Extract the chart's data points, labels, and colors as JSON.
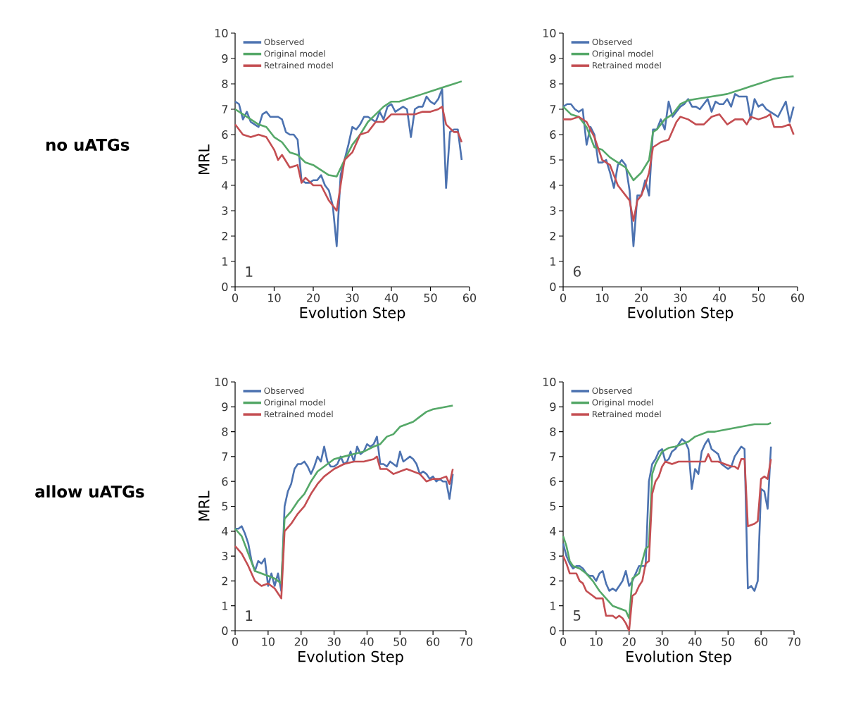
{
  "chart_data": [
    {
      "type": "line",
      "xlabel": "Evolution Step",
      "ylabel": "MRL",
      "annotations": [
        "1",
        "no uATGs"
      ],
      "xlim": [
        0,
        60
      ],
      "xticks": [
        0,
        10,
        20,
        30,
        40,
        50,
        60
      ],
      "ylim": [
        0,
        10
      ],
      "yticks": [
        0,
        1,
        2,
        3,
        4,
        5,
        6,
        7,
        8,
        9,
        10
      ],
      "legend": "top left",
      "grid": false,
      "line_style": "solid",
      "series": [
        {
          "name": "Observed",
          "color": "#4c72b0",
          "x": [
            0,
            1,
            2,
            3,
            4,
            5,
            6,
            7,
            8,
            9,
            10,
            11,
            12,
            13,
            14,
            15,
            16,
            17,
            18,
            19,
            20,
            21,
            22,
            23,
            24,
            25,
            26,
            27,
            28,
            29,
            30,
            31,
            32,
            33,
            34,
            35,
            36,
            37,
            38,
            39,
            40,
            41,
            42,
            43,
            44,
            45,
            46,
            47,
            48,
            49,
            50,
            51,
            52,
            53,
            54,
            55,
            56,
            57,
            58
          ],
          "values": [
            7.3,
            7.2,
            6.6,
            6.9,
            6.5,
            6.4,
            6.3,
            6.8,
            6.9,
            6.7,
            6.7,
            6.7,
            6.6,
            6.1,
            6.0,
            6.0,
            5.8,
            4.2,
            4.1,
            4.1,
            4.2,
            4.2,
            4.4,
            4.0,
            3.8,
            3.2,
            1.6,
            4.4,
            5.0,
            5.6,
            6.3,
            6.2,
            6.4,
            6.7,
            6.7,
            6.6,
            6.5,
            6.9,
            6.6,
            7.1,
            7.2,
            6.9,
            7.0,
            7.1,
            7.0,
            5.9,
            7.0,
            7.1,
            7.1,
            7.5,
            7.3,
            7.2,
            7.4,
            7.8,
            3.9,
            6.1,
            6.2,
            6.2,
            5.0
          ]
        },
        {
          "name": "Original model",
          "color": "#55a868",
          "x": [
            0,
            2,
            4,
            6,
            8,
            10,
            12,
            14,
            16,
            18,
            20,
            22,
            24,
            26,
            28,
            30,
            32,
            34,
            36,
            38,
            40,
            42,
            44,
            46,
            48,
            50,
            52,
            54,
            56,
            58
          ],
          "values": [
            7.0,
            6.8,
            6.6,
            6.4,
            6.3,
            5.9,
            5.7,
            5.3,
            5.2,
            4.9,
            4.8,
            4.6,
            4.4,
            4.35,
            5.0,
            5.6,
            6.0,
            6.5,
            6.8,
            7.1,
            7.3,
            7.3,
            7.4,
            7.5,
            7.6,
            7.7,
            7.8,
            7.9,
            8.0,
            8.1
          ]
        },
        {
          "name": "Retrained model",
          "color": "#c44e52",
          "x": [
            0,
            2,
            4,
            6,
            8,
            10,
            11,
            12,
            14,
            16,
            17,
            18,
            20,
            22,
            24,
            26,
            27,
            28,
            30,
            32,
            34,
            36,
            38,
            40,
            42,
            44,
            46,
            48,
            50,
            52,
            53,
            54,
            56,
            57,
            58
          ],
          "values": [
            6.4,
            6.0,
            5.9,
            6.0,
            5.9,
            5.4,
            5.0,
            5.2,
            4.7,
            4.8,
            4.1,
            4.3,
            4.0,
            4.0,
            3.4,
            3.0,
            4.0,
            5.0,
            5.3,
            6.0,
            6.1,
            6.5,
            6.5,
            6.8,
            6.8,
            6.8,
            6.8,
            6.9,
            6.9,
            7.0,
            7.1,
            6.4,
            6.1,
            6.1,
            5.7
          ]
        }
      ]
    },
    {
      "type": "line",
      "xlabel": "Evolution Step",
      "annotations": [
        "6"
      ],
      "xlim": [
        0,
        60
      ],
      "xticks": [
        0,
        10,
        20,
        30,
        40,
        50,
        60
      ],
      "ylim": [
        0,
        10
      ],
      "yticks": [
        0,
        1,
        2,
        3,
        4,
        5,
        6,
        7,
        8,
        9,
        10
      ],
      "legend": "top left",
      "grid": false,
      "line_style": "solid",
      "series": [
        {
          "name": "Observed",
          "color": "#4c72b0",
          "x": [
            0,
            1,
            2,
            3,
            4,
            5,
            6,
            7,
            8,
            9,
            10,
            11,
            12,
            13,
            14,
            15,
            16,
            17,
            18,
            19,
            20,
            21,
            22,
            23,
            24,
            25,
            26,
            27,
            28,
            29,
            30,
            31,
            32,
            33,
            34,
            35,
            36,
            37,
            38,
            39,
            40,
            41,
            42,
            43,
            44,
            45,
            46,
            47,
            48,
            49,
            50,
            51,
            52,
            53,
            54,
            55,
            56,
            57,
            58,
            59
          ],
          "values": [
            7.1,
            7.2,
            7.2,
            7.0,
            6.9,
            7.0,
            5.6,
            6.3,
            6.0,
            4.9,
            4.9,
            5.0,
            4.5,
            3.9,
            4.8,
            5.0,
            4.8,
            3.8,
            1.6,
            3.6,
            3.6,
            4.2,
            3.6,
            6.2,
            6.2,
            6.6,
            6.2,
            7.3,
            6.7,
            6.9,
            7.1,
            7.2,
            7.4,
            7.1,
            7.1,
            7.0,
            7.2,
            7.4,
            6.9,
            7.3,
            7.2,
            7.2,
            7.4,
            7.1,
            7.6,
            7.5,
            7.5,
            7.5,
            6.6,
            7.4,
            7.1,
            7.2,
            7.0,
            6.9,
            6.8,
            6.7,
            7.0,
            7.3,
            6.5,
            7.1
          ]
        },
        {
          "name": "Original model",
          "color": "#55a868",
          "x": [
            0,
            2,
            4,
            6,
            8,
            10,
            12,
            14,
            16,
            18,
            20,
            22,
            23,
            24,
            26,
            28,
            30,
            32,
            34,
            36,
            38,
            40,
            42,
            44,
            46,
            48,
            50,
            52,
            54,
            56,
            59
          ],
          "values": [
            7.1,
            6.8,
            6.7,
            6.3,
            5.5,
            5.4,
            5.1,
            4.9,
            4.7,
            4.2,
            4.5,
            5.0,
            6.1,
            6.2,
            6.6,
            6.8,
            7.2,
            7.35,
            7.4,
            7.45,
            7.5,
            7.55,
            7.6,
            7.7,
            7.8,
            7.9,
            8.0,
            8.1,
            8.2,
            8.25,
            8.3
          ]
        },
        {
          "name": "Retrained model",
          "color": "#c44e52",
          "x": [
            0,
            2,
            4,
            6,
            8,
            10,
            12,
            14,
            16,
            17,
            18,
            19,
            20,
            21,
            22,
            23,
            25,
            27,
            29,
            30,
            32,
            34,
            36,
            38,
            40,
            42,
            44,
            46,
            47,
            48,
            50,
            52,
            53,
            54,
            56,
            58,
            59
          ],
          "values": [
            6.6,
            6.6,
            6.7,
            6.5,
            5.9,
            5.0,
            4.8,
            4.0,
            3.6,
            3.4,
            2.6,
            3.4,
            3.6,
            4.0,
            4.5,
            5.5,
            5.7,
            5.8,
            6.5,
            6.7,
            6.6,
            6.4,
            6.4,
            6.7,
            6.8,
            6.4,
            6.6,
            6.6,
            6.4,
            6.7,
            6.6,
            6.7,
            6.8,
            6.3,
            6.3,
            6.4,
            6.0
          ]
        }
      ]
    },
    {
      "type": "line",
      "xlabel": "Evolution Step",
      "ylabel": "MRL",
      "annotations": [
        "1",
        "allow uATGs"
      ],
      "xlim": [
        0,
        70
      ],
      "xticks": [
        0,
        10,
        20,
        30,
        40,
        50,
        60,
        70
      ],
      "ylim": [
        0,
        10
      ],
      "yticks": [
        0,
        1,
        2,
        3,
        4,
        5,
        6,
        7,
        8,
        9,
        10
      ],
      "legend": "top left",
      "grid": false,
      "line_style": "solid",
      "series": [
        {
          "name": "Observed",
          "color": "#4c72b0",
          "x": [
            0,
            1,
            2,
            3,
            4,
            5,
            6,
            7,
            8,
            9,
            10,
            11,
            12,
            13,
            14,
            15,
            16,
            17,
            18,
            19,
            20,
            21,
            22,
            23,
            24,
            25,
            26,
            27,
            28,
            29,
            30,
            31,
            32,
            33,
            34,
            35,
            36,
            37,
            38,
            39,
            40,
            41,
            42,
            43,
            44,
            45,
            46,
            47,
            48,
            49,
            50,
            51,
            52,
            53,
            54,
            55,
            56,
            57,
            58,
            59,
            60,
            61,
            62,
            63,
            64,
            65,
            66
          ],
          "values": [
            4.1,
            4.1,
            4.2,
            3.9,
            3.5,
            2.8,
            2.4,
            2.8,
            2.7,
            2.9,
            1.8,
            2.3,
            1.8,
            2.3,
            1.6,
            5.0,
            5.6,
            5.9,
            6.5,
            6.7,
            6.7,
            6.8,
            6.6,
            6.3,
            6.6,
            7.0,
            6.8,
            7.4,
            6.8,
            6.6,
            6.6,
            6.7,
            7.0,
            6.7,
            6.8,
            7.2,
            6.8,
            7.4,
            7.1,
            7.2,
            7.5,
            7.4,
            7.5,
            7.8,
            6.7,
            6.7,
            6.6,
            6.8,
            6.7,
            6.6,
            7.2,
            6.8,
            6.9,
            7.0,
            6.9,
            6.7,
            6.3,
            6.4,
            6.3,
            6.1,
            6.2,
            6.0,
            6.1,
            6.0,
            6.0,
            5.3,
            6.3
          ]
        },
        {
          "name": "Original model",
          "color": "#55a868",
          "x": [
            0,
            2,
            4,
            6,
            8,
            10,
            12,
            14,
            15,
            17,
            19,
            21,
            23,
            25,
            27,
            30,
            33,
            36,
            39,
            42,
            44,
            46,
            48,
            50,
            52,
            54,
            56,
            58,
            60,
            62,
            64,
            66
          ],
          "values": [
            4.1,
            3.8,
            3.1,
            2.4,
            2.3,
            2.2,
            2.1,
            1.9,
            4.5,
            4.8,
            5.2,
            5.5,
            6.0,
            6.4,
            6.6,
            6.9,
            7.0,
            7.1,
            7.2,
            7.4,
            7.5,
            7.8,
            7.9,
            8.2,
            8.3,
            8.4,
            8.6,
            8.8,
            8.9,
            8.95,
            9.0,
            9.05
          ]
        },
        {
          "name": "Retrained model",
          "color": "#c44e52",
          "x": [
            0,
            2,
            4,
            6,
            8,
            10,
            12,
            14,
            15,
            17,
            19,
            21,
            23,
            25,
            27,
            30,
            33,
            36,
            39,
            42,
            43,
            44,
            46,
            48,
            50,
            52,
            54,
            56,
            58,
            60,
            62,
            64,
            65,
            66
          ],
          "values": [
            3.4,
            3.1,
            2.6,
            2.0,
            1.8,
            1.9,
            1.7,
            1.3,
            4.0,
            4.3,
            4.7,
            5.0,
            5.5,
            5.9,
            6.2,
            6.5,
            6.7,
            6.8,
            6.8,
            6.9,
            7.0,
            6.5,
            6.5,
            6.3,
            6.4,
            6.5,
            6.4,
            6.3,
            6.0,
            6.1,
            6.1,
            6.2,
            5.9,
            6.5
          ]
        }
      ]
    },
    {
      "type": "line",
      "xlabel": "Evolution Step",
      "annotations": [
        "5"
      ],
      "xlim": [
        0,
        70
      ],
      "xticks": [
        0,
        10,
        20,
        30,
        40,
        50,
        60,
        70
      ],
      "ylim": [
        0,
        10
      ],
      "yticks": [
        0,
        1,
        2,
        3,
        4,
        5,
        6,
        7,
        8,
        9,
        10
      ],
      "legend": "top left",
      "grid": false,
      "line_style": "solid",
      "series": [
        {
          "name": "Observed",
          "color": "#4c72b0",
          "x": [
            0,
            1,
            2,
            3,
            4,
            5,
            6,
            7,
            8,
            9,
            10,
            11,
            12,
            13,
            14,
            15,
            16,
            17,
            18,
            19,
            20,
            21,
            22,
            23,
            24,
            25,
            26,
            27,
            28,
            29,
            30,
            31,
            32,
            33,
            34,
            35,
            36,
            37,
            38,
            39,
            40,
            41,
            42,
            43,
            44,
            45,
            46,
            47,
            48,
            49,
            50,
            51,
            52,
            53,
            54,
            55,
            56,
            57,
            58,
            59,
            60,
            61,
            62,
            63
          ],
          "values": [
            3.5,
            3.0,
            2.7,
            2.5,
            2.6,
            2.6,
            2.5,
            2.3,
            2.2,
            2.2,
            2.0,
            2.3,
            2.4,
            1.9,
            1.6,
            1.7,
            1.6,
            1.8,
            2.0,
            2.4,
            1.8,
            2.0,
            2.3,
            2.6,
            2.6,
            2.6,
            6.0,
            6.7,
            6.9,
            7.2,
            7.3,
            6.8,
            6.9,
            7.2,
            7.3,
            7.5,
            7.7,
            7.6,
            7.3,
            5.7,
            6.5,
            6.3,
            7.2,
            7.5,
            7.7,
            7.3,
            7.2,
            7.1,
            6.7,
            6.6,
            6.5,
            6.6,
            7.0,
            7.2,
            7.4,
            7.3,
            1.7,
            1.8,
            1.6,
            2.0,
            5.7,
            5.6,
            4.9,
            7.4
          ]
        },
        {
          "name": "Original model",
          "color": "#55a868",
          "x": [
            0,
            1,
            2,
            3,
            5,
            7,
            9,
            11,
            13,
            15,
            17,
            19,
            20,
            21,
            23,
            25,
            26,
            27,
            28,
            30,
            32,
            34,
            36,
            38,
            40,
            42,
            44,
            46,
            48,
            50,
            52,
            54,
            56,
            58,
            60,
            62,
            63
          ],
          "values": [
            3.8,
            3.4,
            2.8,
            2.6,
            2.5,
            2.3,
            2.0,
            1.6,
            1.3,
            1.0,
            0.9,
            0.8,
            0.5,
            2.1,
            2.3,
            3.3,
            3.4,
            6.3,
            6.7,
            7.2,
            7.35,
            7.4,
            7.5,
            7.6,
            7.8,
            7.9,
            8.0,
            8.0,
            8.05,
            8.1,
            8.15,
            8.2,
            8.25,
            8.3,
            8.3,
            8.3,
            8.35
          ]
        },
        {
          "name": "Retrained model",
          "color": "#c44e52",
          "x": [
            0,
            1,
            2,
            4,
            5,
            6,
            7,
            9,
            10,
            12,
            13,
            15,
            16,
            17,
            18,
            19,
            20,
            21,
            22,
            23,
            24,
            25,
            26,
            27,
            28,
            29,
            30,
            31,
            33,
            35,
            37,
            39,
            41,
            43,
            44,
            45,
            47,
            49,
            51,
            52,
            53,
            54,
            55,
            56,
            58,
            59,
            60,
            61,
            62,
            63
          ],
          "values": [
            3.0,
            2.7,
            2.3,
            2.3,
            2.0,
            1.9,
            1.6,
            1.4,
            1.3,
            1.3,
            0.6,
            0.6,
            0.5,
            0.6,
            0.5,
            0.3,
            0.0,
            1.4,
            1.5,
            1.8,
            2.0,
            2.7,
            2.8,
            5.5,
            6.0,
            6.2,
            6.6,
            6.8,
            6.7,
            6.8,
            6.8,
            6.8,
            6.8,
            6.8,
            7.1,
            6.8,
            6.8,
            6.7,
            6.6,
            6.6,
            6.5,
            6.9,
            6.9,
            4.2,
            4.3,
            4.4,
            6.1,
            6.2,
            6.1,
            6.9
          ]
        }
      ]
    }
  ]
}
